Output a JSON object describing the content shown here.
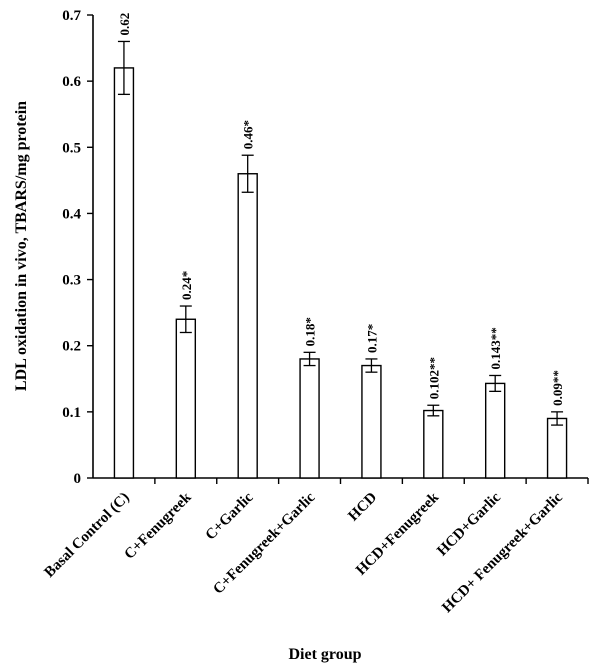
{
  "chart_data": {
    "type": "bar",
    "title": "",
    "xlabel": "Diet group",
    "ylabel": "LDL oxidation in vivo, TBARS/mg protein",
    "ylim": [
      0,
      0.7
    ],
    "yticks": [
      "0",
      "0.1",
      "0.2",
      "0.3",
      "0.4",
      "0.5",
      "0.6",
      "0.7"
    ],
    "grid": false,
    "legend": "none",
    "categories": [
      "Basal Control (C)",
      "C+Fenugreek",
      "C+Garlic",
      "C+Fenugreek+Garlic",
      "HCD",
      "HCD+Fenugreek",
      "HCD+Garlic",
      "HCD+ Fenugreek+Garlic"
    ],
    "values": [
      0.62,
      0.24,
      0.46,
      0.18,
      0.17,
      0.102,
      0.143,
      0.09
    ],
    "errors": [
      0.04,
      0.02,
      0.028,
      0.01,
      0.01,
      0.008,
      0.012,
      0.01
    ],
    "data_labels": [
      "0.62",
      "0.24*",
      "0.46*",
      "0.18*",
      "0.17*",
      "0.102**",
      "0.143**",
      "0.09**"
    ],
    "colors": {
      "bar_fill": "#ffffff",
      "bar_stroke": "#000000",
      "axis": "#000000"
    }
  }
}
